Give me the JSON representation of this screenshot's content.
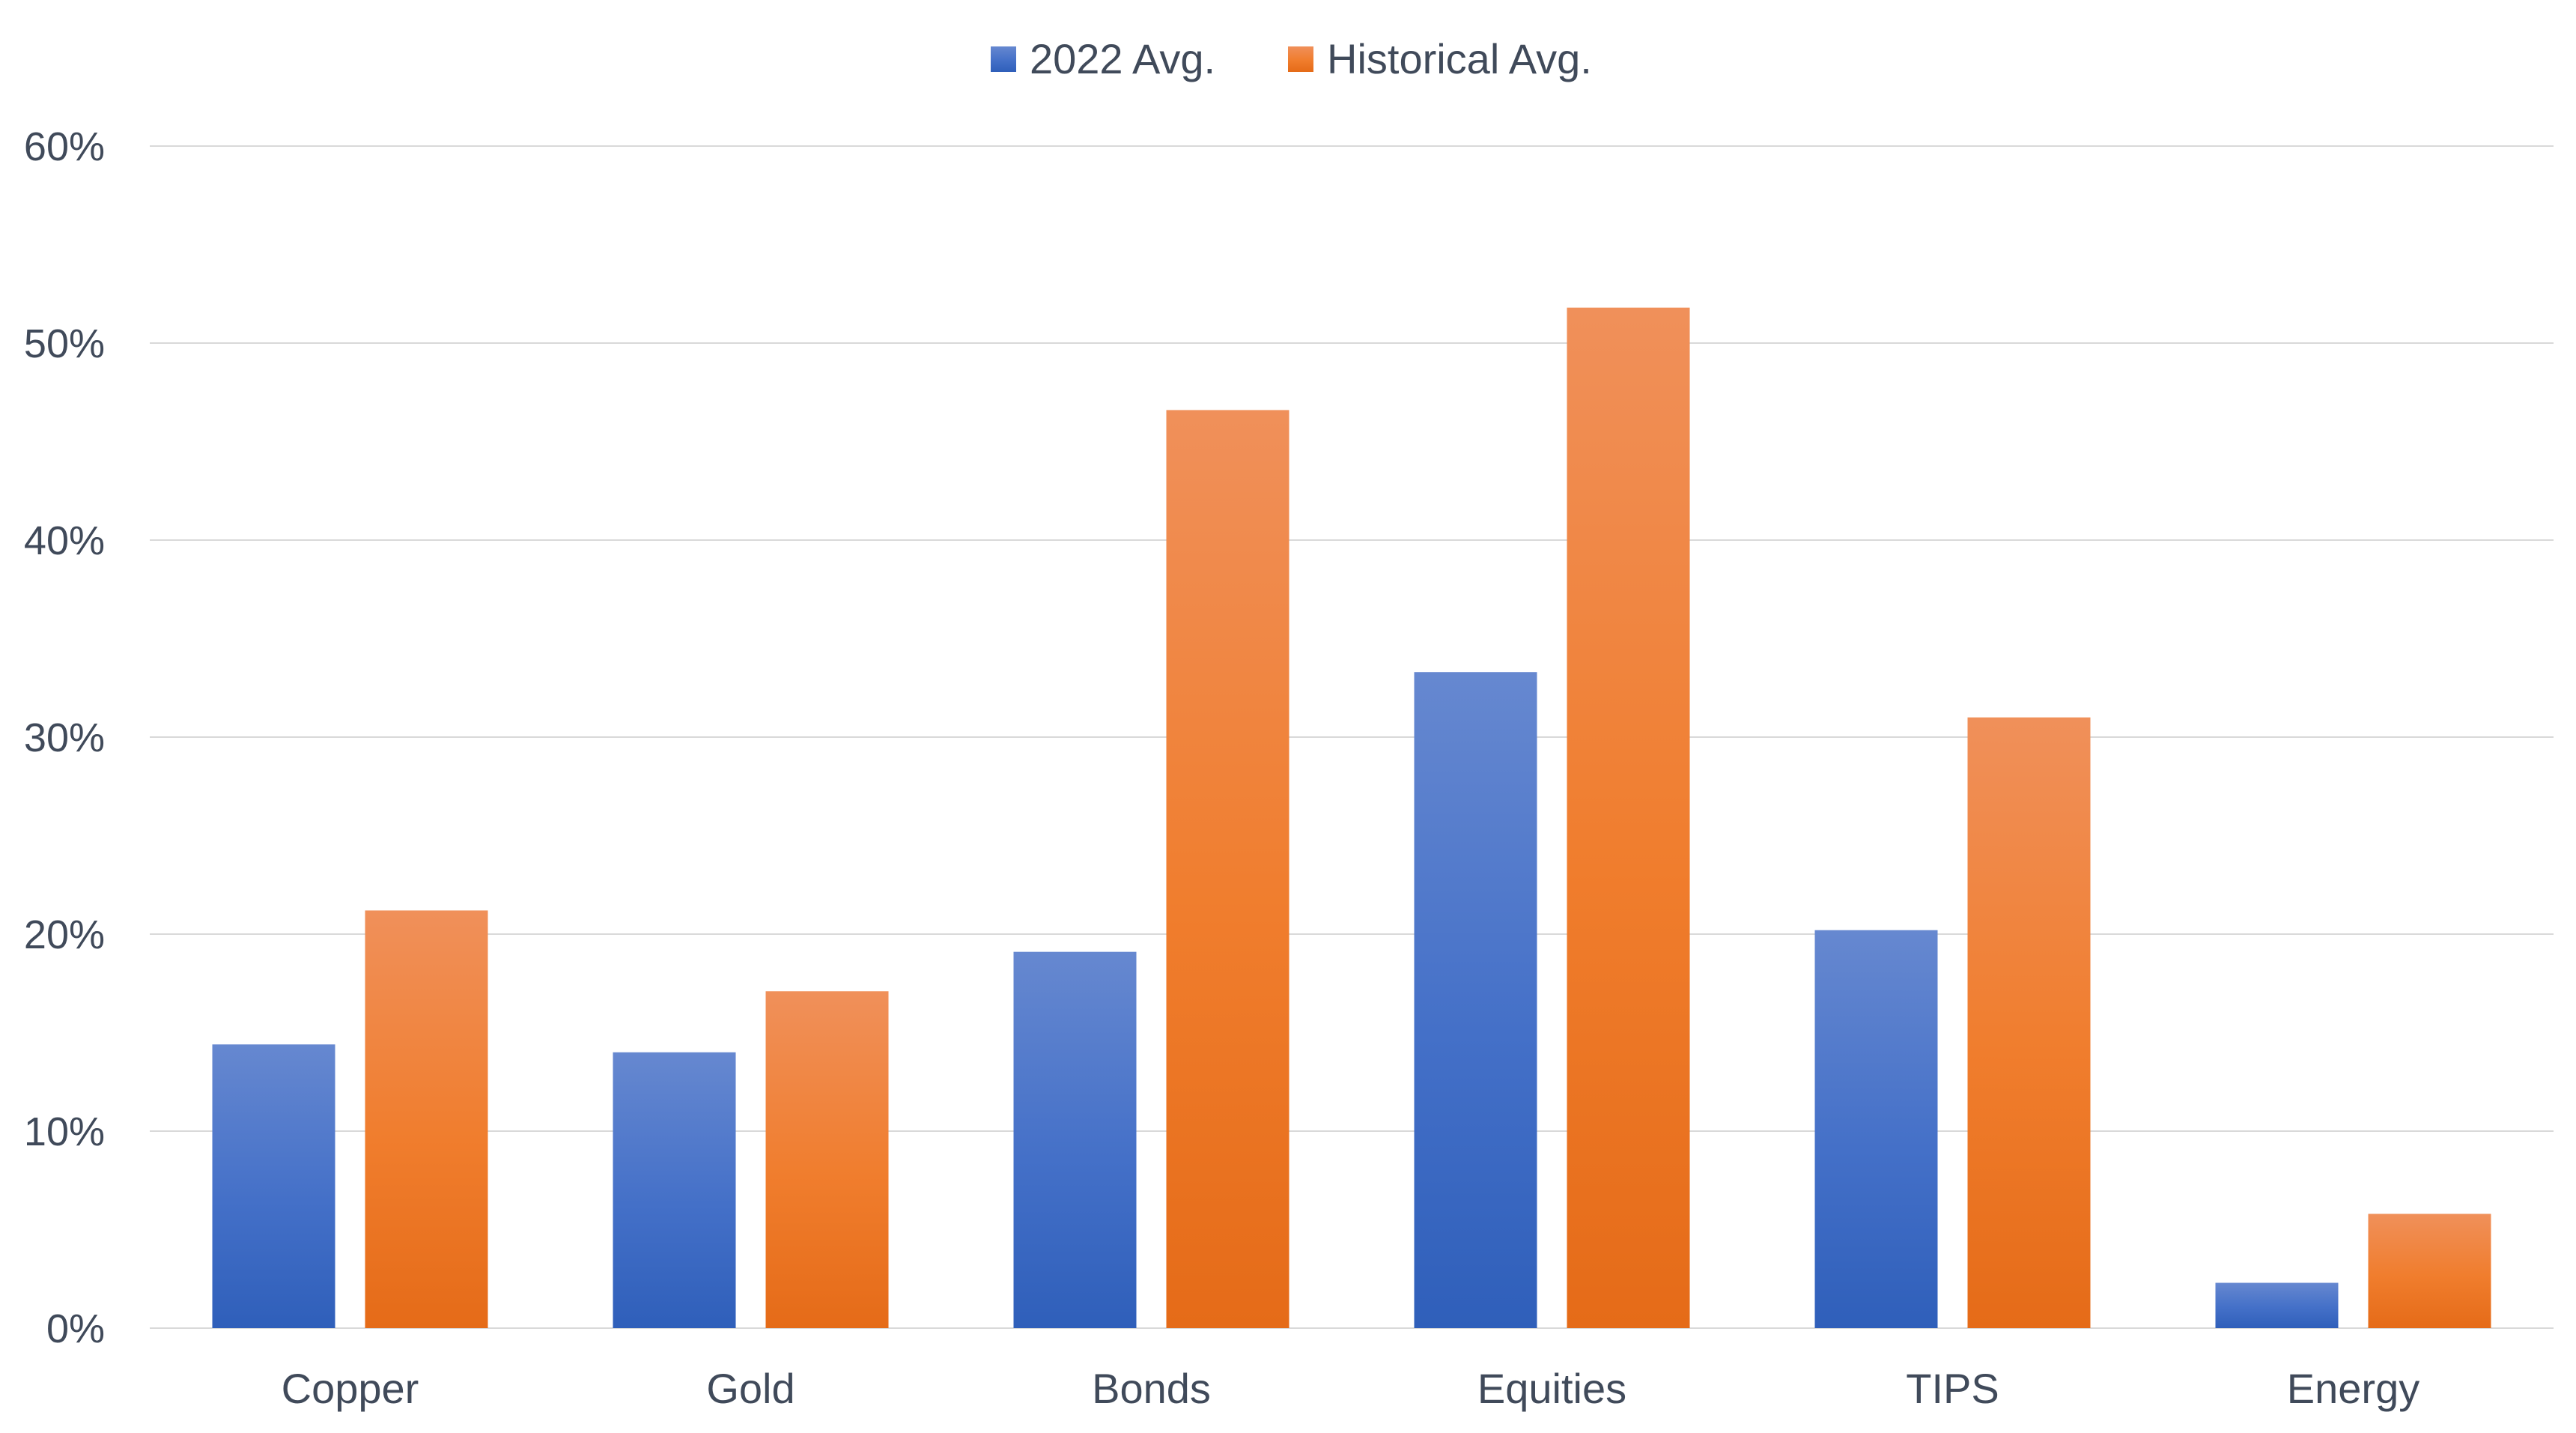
{
  "chart_data": {
    "type": "bar",
    "categories": [
      "Copper",
      "Gold",
      "Bonds",
      "Equities",
      "TIPS",
      "Energy"
    ],
    "series": [
      {
        "name": "2022 Avg.",
        "values": [
          14.4,
          14.0,
          19.1,
          33.3,
          20.2,
          2.3
        ],
        "color": "#4472c4"
      },
      {
        "name": "Historical Avg.",
        "values": [
          21.2,
          17.1,
          46.6,
          51.8,
          31.0,
          5.8
        ],
        "color": "#ed7d31"
      }
    ],
    "ylim": [
      0,
      60
    ],
    "yticks": [
      "0%",
      "10%",
      "20%",
      "30%",
      "40%",
      "50%",
      "60%"
    ],
    "ytick_values": [
      0,
      10,
      20,
      30,
      40,
      50,
      60
    ],
    "grid": true,
    "legend_position": "top-center",
    "title": "",
    "xlabel": "",
    "ylabel": ""
  }
}
